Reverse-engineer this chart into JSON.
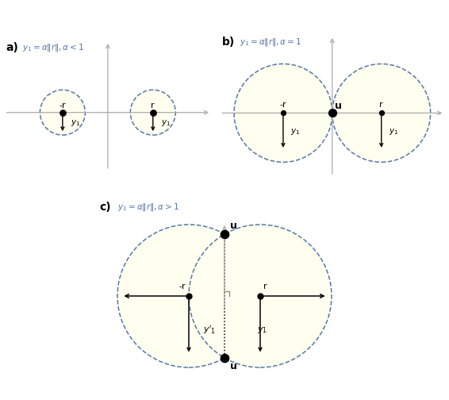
{
  "fig_width": 5.66,
  "fig_height": 5.04,
  "dpi": 100,
  "bg_color": "#ffffff",
  "circle_fill": "#fffff0",
  "circle_edge": "#5577aa",
  "axis_color": "#999999",
  "panels": {
    "a": {
      "label": "a)",
      "title": "$y_1=\\alpha\\|r\\|,\\,\\alpha<1$",
      "r": 1.4,
      "cr": 0.7,
      "xlim": [
        -3.2,
        3.2
      ],
      "ylim": [
        -1.8,
        2.2
      ]
    },
    "b": {
      "label": "b)",
      "title": "$y_1=\\alpha\\|r\\|,\\,\\alpha=1$",
      "r": 1.4,
      "cr": 1.4,
      "xlim": [
        -3.2,
        3.2
      ],
      "ylim": [
        -1.8,
        2.2
      ]
    },
    "c": {
      "label": "c)",
      "title": "$y_1=\\alpha\\|r\\|,\\,\\alpha>1$",
      "r": 1.0,
      "cr": 2.0,
      "xlim": [
        -3.8,
        3.8
      ],
      "ylim": [
        -2.8,
        2.8
      ]
    }
  }
}
